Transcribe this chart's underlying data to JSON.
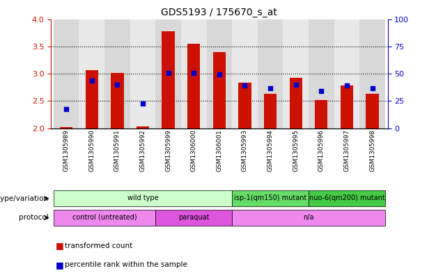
{
  "title": "GDS5193 / 175670_s_at",
  "samples": [
    "GSM1305989",
    "GSM1305990",
    "GSM1305991",
    "GSM1305992",
    "GSM1305999",
    "GSM1306000",
    "GSM1306001",
    "GSM1305993",
    "GSM1305994",
    "GSM1305995",
    "GSM1305996",
    "GSM1305997",
    "GSM1305998"
  ],
  "red_bar_heights": [
    2.02,
    3.06,
    3.01,
    2.04,
    3.78,
    3.55,
    3.4,
    2.84,
    2.63,
    2.92,
    2.52,
    2.79,
    2.63
  ],
  "blue_dot_values": [
    2.35,
    2.88,
    2.8,
    2.46,
    3.01,
    3.01,
    2.99,
    2.79,
    2.73,
    2.8,
    2.68,
    2.79,
    2.73
  ],
  "ylim_left": [
    2.0,
    4.0
  ],
  "ylim_right": [
    0,
    100
  ],
  "yticks_left": [
    2.0,
    2.5,
    3.0,
    3.5,
    4.0
  ],
  "yticks_right": [
    0,
    25,
    50,
    75,
    100
  ],
  "bar_color": "#cc1100",
  "dot_color": "#0000cc",
  "bar_width": 0.5,
  "genotype_groups": [
    {
      "label": "wild type",
      "start": 0,
      "end": 6,
      "color": "#ccffcc"
    },
    {
      "label": "isp-1(qm150) mutant",
      "start": 7,
      "end": 9,
      "color": "#66dd66"
    },
    {
      "label": "nuo-6(qm200) mutant",
      "start": 10,
      "end": 12,
      "color": "#44cc44"
    }
  ],
  "protocol_groups": [
    {
      "label": "control (untreated)",
      "start": 0,
      "end": 3,
      "color": "#ee88ee"
    },
    {
      "label": "paraquat",
      "start": 4,
      "end": 6,
      "color": "#dd55dd"
    },
    {
      "label": "n/a",
      "start": 7,
      "end": 12,
      "color": "#ee88ee"
    }
  ],
  "legend_red": "transformed count",
  "legend_blue": "percentile rank within the sample",
  "genotype_label": "genotype/variation",
  "protocol_label": "protocol",
  "tick_color_left": "#cc1100",
  "tick_color_right": "#0000cc",
  "col_bg_even": "#d8d8d8",
  "col_bg_odd": "#e8e8e8"
}
